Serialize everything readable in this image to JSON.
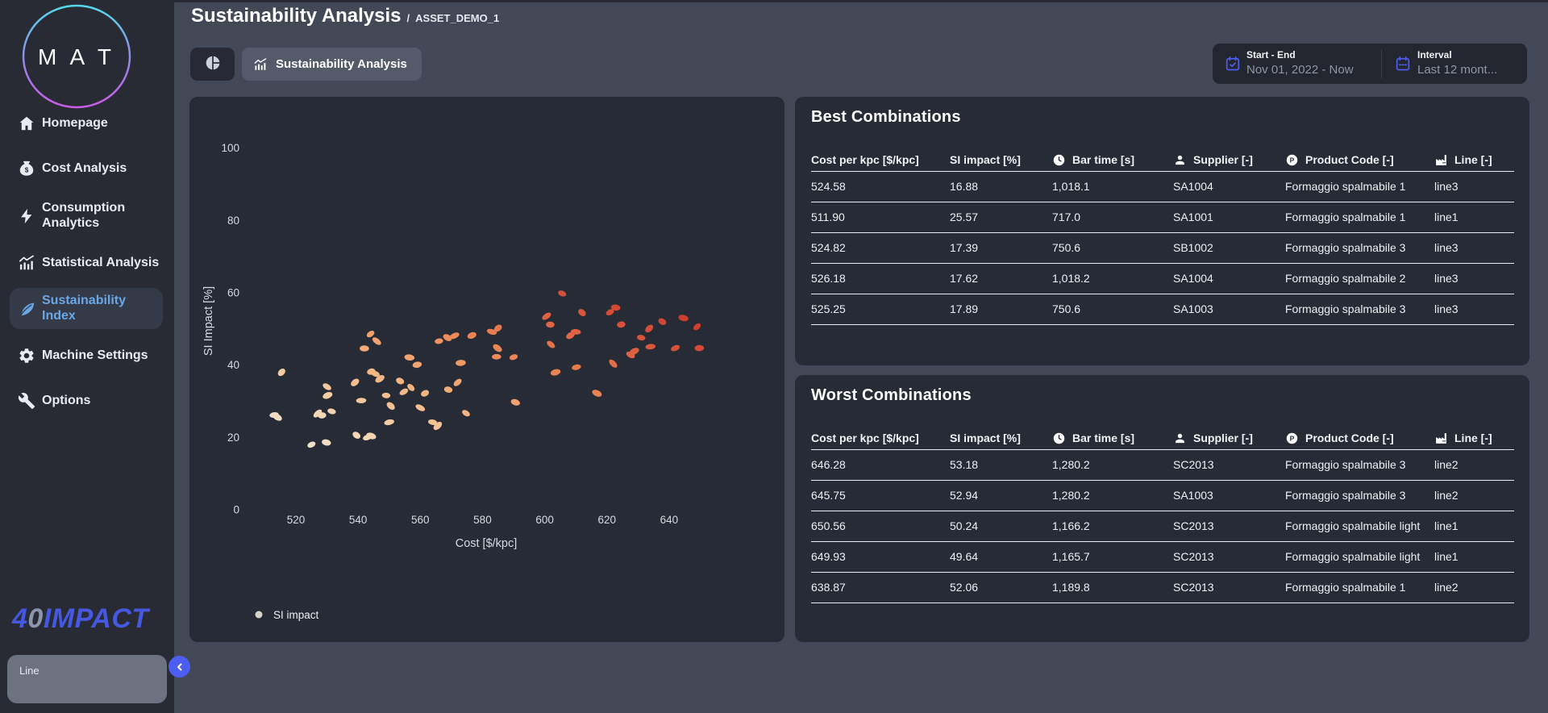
{
  "app": {
    "page_title": "Sustainability Analysis",
    "breadcrumb_separator": "/",
    "breadcrumb": "ASSET_DEMO_1"
  },
  "logo": {
    "letters": "M A T"
  },
  "sidebar": {
    "items": [
      {
        "label": "Homepage",
        "icon": "home-icon",
        "active": false
      },
      {
        "label": "Cost Analysis",
        "icon": "cost-icon",
        "active": false
      },
      {
        "label": "Consumption Analytics",
        "icon": "bolt-icon",
        "active": false
      },
      {
        "label": "Statistical Analysis",
        "icon": "stats-icon",
        "active": false
      },
      {
        "label": "Sustainability Index",
        "icon": "leaf-icon",
        "active": true
      },
      {
        "label": "Machine Settings",
        "icon": "gear-icon",
        "active": false
      },
      {
        "label": "Options",
        "icon": "wrench-icon",
        "active": false
      }
    ],
    "brand": {
      "part1": "4",
      "part2": "0",
      "part3": "IMPACT"
    },
    "line_filter_label": "Line"
  },
  "toolbar": {
    "pie_button_icon": "pie-icon",
    "active_tab": {
      "icon": "stats-icon",
      "label": "Sustainability Analysis"
    }
  },
  "date_controls": {
    "start_end_label": "Start - End",
    "start_end_value": "Nov 01, 2022 - Now",
    "interval_label": "Interval",
    "interval_value": "Last 12 mont..."
  },
  "panels": {
    "best": {
      "title": "Best Combinations"
    },
    "worst": {
      "title": "Worst Combinations"
    }
  },
  "table": {
    "columns": [
      {
        "label": "Cost per kpc [$/kpc]",
        "icon": null
      },
      {
        "label": "SI impact [%]",
        "icon": null
      },
      {
        "label": "Bar time [s]",
        "icon": "clock-icon"
      },
      {
        "label": "Supplier [-]",
        "icon": "supplier-icon"
      },
      {
        "label": "Product Code [-]",
        "icon": "product-icon"
      },
      {
        "label": "Line [-]",
        "icon": "factory-icon"
      }
    ],
    "best_rows": [
      [
        "524.58",
        "16.88",
        "1,018.1",
        "SA1004",
        "Formaggio spalmabile 1",
        "line3"
      ],
      [
        "511.90",
        "25.57",
        "717.0",
        "SA1001",
        "Formaggio spalmabile 1",
        "line1"
      ],
      [
        "524.82",
        "17.39",
        "750.6",
        "SB1002",
        "Formaggio spalmabile 3",
        "line3"
      ],
      [
        "526.18",
        "17.62",
        "1,018.2",
        "SA1004",
        "Formaggio spalmabile 2",
        "line3"
      ],
      [
        "525.25",
        "17.89",
        "750.6",
        "SA1003",
        "Formaggio spalmabile 3",
        "line3"
      ]
    ],
    "worst_rows": [
      [
        "646.28",
        "53.18",
        "1,280.2",
        "SC2013",
        "Formaggio spalmabile 3",
        "line2"
      ],
      [
        "645.75",
        "52.94",
        "1,280.2",
        "SA1003",
        "Formaggio spalmabile 3",
        "line2"
      ],
      [
        "650.56",
        "50.24",
        "1,166.2",
        "SC2013",
        "Formaggio spalmabile light",
        "line1"
      ],
      [
        "649.93",
        "49.64",
        "1,165.7",
        "SC2013",
        "Formaggio spalmabile light",
        "line1"
      ],
      [
        "638.87",
        "52.06",
        "1,189.8",
        "SC2013",
        "Formaggio spalmabile 1",
        "line2"
      ]
    ]
  },
  "chart_data": {
    "type": "scatter",
    "title": "",
    "xlabel": "Cost [$/kpc]",
    "ylabel": "SI Impact [%]",
    "xticks": [
      520,
      540,
      560,
      580,
      600,
      620,
      640
    ],
    "yticks": [
      0,
      20,
      40,
      60,
      80,
      100
    ],
    "xlim": [
      503,
      658
    ],
    "ylim": [
      0,
      114
    ],
    "grid": false,
    "legend_position": "bottom-left",
    "legend_dot_color": "#d8d2c8",
    "point_colormap": [
      "#eee5da",
      "#f4d2ab",
      "#f2ab76",
      "#e97e4f",
      "#d6503a",
      "#c02b22"
    ],
    "series": [
      {
        "name": "SI impact",
        "points": [
          [
            515.4,
            38
          ],
          [
            513,
            26.2
          ],
          [
            514,
            25.6
          ],
          [
            525,
            18
          ],
          [
            529.8,
            18.6
          ],
          [
            527,
            26.6
          ],
          [
            528.4,
            26.1
          ],
          [
            530,
            34
          ],
          [
            530.2,
            31.6
          ],
          [
            531.5,
            27.2
          ],
          [
            539,
            35.2
          ],
          [
            541,
            30.2
          ],
          [
            539.5,
            20.6
          ],
          [
            543,
            20
          ],
          [
            544.2,
            20.4
          ],
          [
            544,
            48.6
          ],
          [
            542,
            44.6
          ],
          [
            546,
            46.6
          ],
          [
            544.2,
            38.2
          ],
          [
            545.5,
            37.6
          ],
          [
            547,
            36.2
          ],
          [
            549,
            31.6
          ],
          [
            550.5,
            28.7
          ],
          [
            550,
            24.2
          ],
          [
            553.5,
            35.6
          ],
          [
            554.7,
            32.6
          ],
          [
            556.5,
            42.1
          ],
          [
            557,
            33.8
          ],
          [
            559,
            40.1
          ],
          [
            560,
            28.2
          ],
          [
            561.5,
            32.2
          ],
          [
            564,
            24.2
          ],
          [
            565.6,
            23.2
          ],
          [
            566,
            46.6
          ],
          [
            568.7,
            47.6
          ],
          [
            571,
            48.1
          ],
          [
            569,
            33.2
          ],
          [
            572,
            35.2
          ],
          [
            573,
            40.6
          ],
          [
            574.7,
            26.7
          ],
          [
            576.6,
            48.2
          ],
          [
            583,
            49.2
          ],
          [
            585,
            50.2
          ],
          [
            584.5,
            42.3
          ],
          [
            584.8,
            44.7
          ],
          [
            590,
            42.2
          ],
          [
            590.6,
            29.7
          ],
          [
            600.6,
            53.5
          ],
          [
            601.8,
            51.2
          ],
          [
            602,
            45.7
          ],
          [
            603.5,
            38
          ],
          [
            605.6,
            59.8
          ],
          [
            608.3,
            48.2
          ],
          [
            610,
            49.2
          ],
          [
            612,
            54.5
          ],
          [
            610.2,
            39.4
          ],
          [
            616.8,
            32.2
          ],
          [
            621,
            54.6
          ],
          [
            622.8,
            55.9
          ],
          [
            622,
            40.4
          ],
          [
            624.6,
            51.2
          ],
          [
            627.6,
            42.8
          ],
          [
            628.8,
            43.8
          ],
          [
            631,
            47.6
          ],
          [
            633.6,
            50.1
          ],
          [
            634,
            45.1
          ],
          [
            637.8,
            52
          ],
          [
            642,
            44.7
          ],
          [
            644.6,
            53
          ],
          [
            649,
            50.6
          ],
          [
            649.7,
            44.7
          ]
        ]
      }
    ]
  },
  "colors": {
    "accent_blue": "#4c5df2",
    "active_nav_blue": "#6aa7e6",
    "brand_blue": "#4657e0",
    "body_bg": "#434857",
    "panel_bg": "#272b35",
    "sidebar_bg": "#282b34"
  }
}
